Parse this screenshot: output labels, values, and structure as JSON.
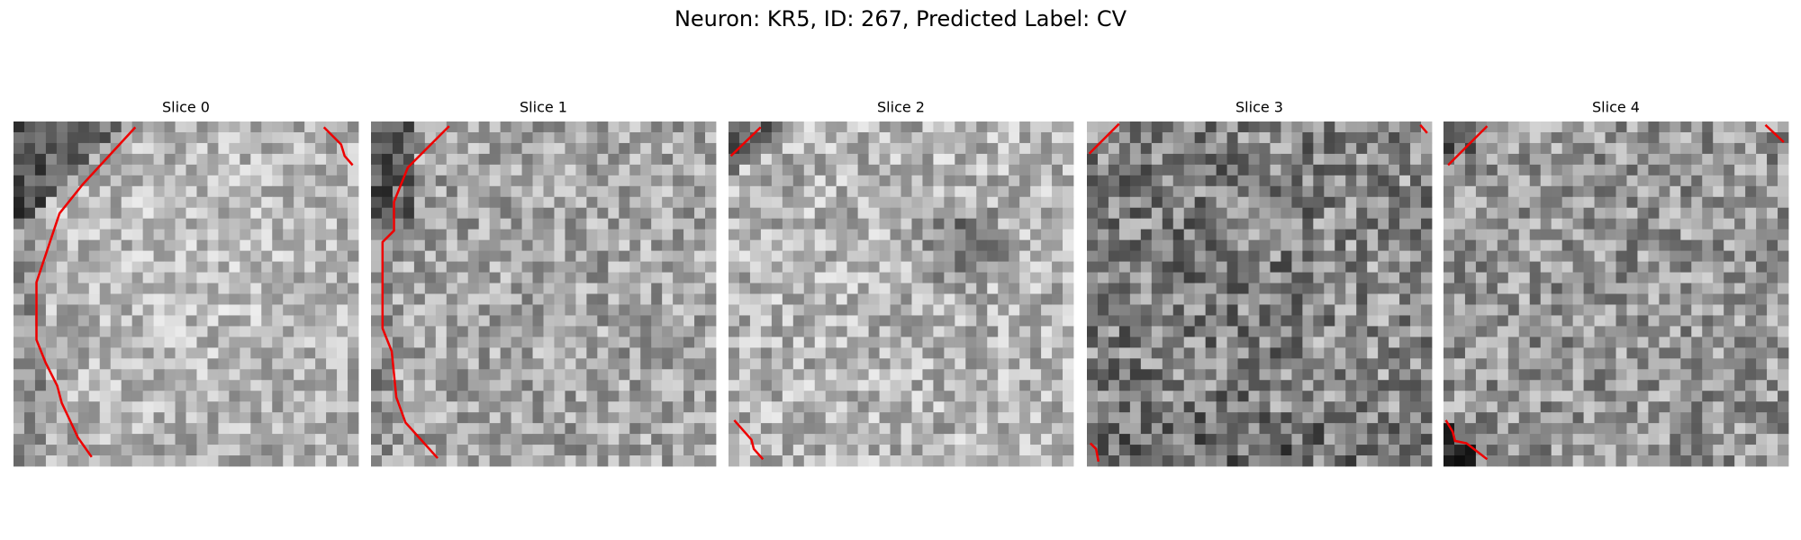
{
  "figure": {
    "title": "Neuron: KR5, ID: 267, Predicted Label: CV",
    "panels": [
      {
        "title": "Slice 0"
      },
      {
        "title": "Slice 1"
      },
      {
        "title": "Slice 2"
      },
      {
        "title": "Slice 3"
      },
      {
        "title": "Slice 4"
      }
    ]
  }
}
